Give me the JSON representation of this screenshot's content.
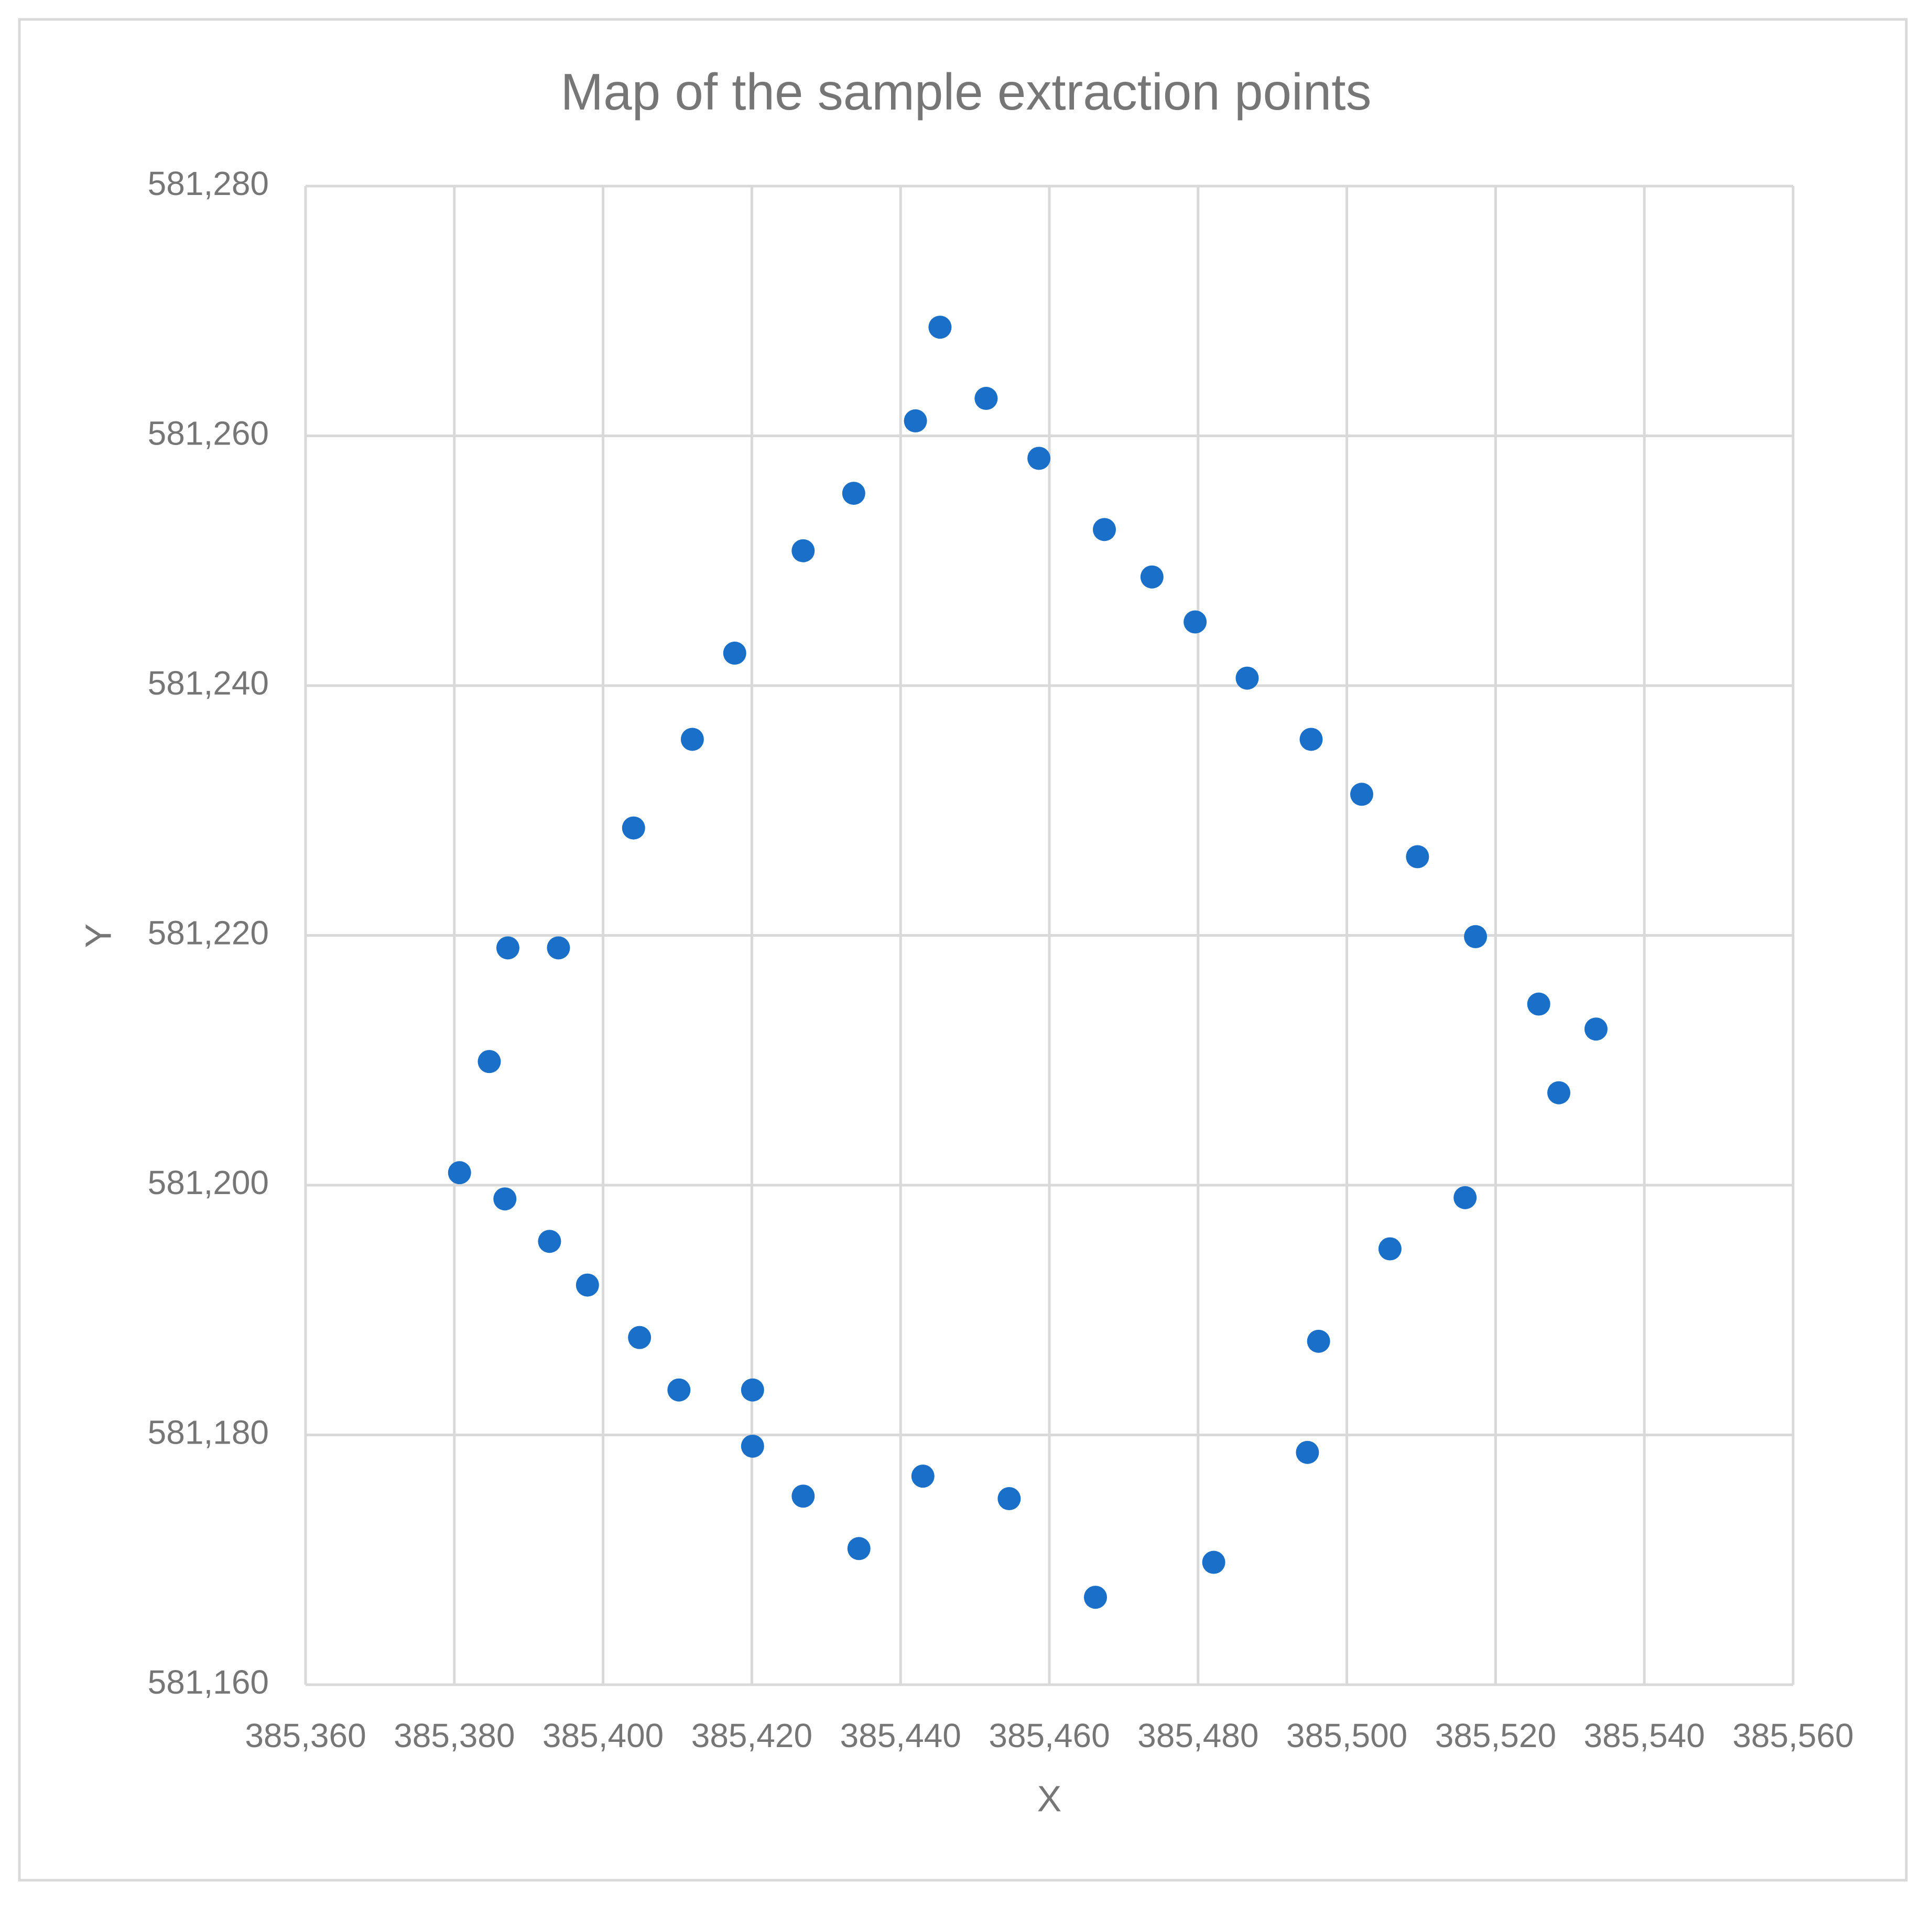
{
  "chart_data": {
    "type": "scatter",
    "title": "Map of the sample extraction points",
    "x_label": "X",
    "y_label": "Y",
    "color": "#1a6fc9",
    "grid": true,
    "xlim": [
      385360,
      385560
    ],
    "xticks": [
      {
        "value": 385360,
        "label": "385,360"
      },
      {
        "value": 385380,
        "label": "385,380"
      },
      {
        "value": 385400,
        "label": "385,400"
      },
      {
        "value": 385420,
        "label": "385,420"
      },
      {
        "value": 385440,
        "label": "385,440"
      },
      {
        "value": 385460,
        "label": "385,460"
      },
      {
        "value": 385480,
        "label": "385,480"
      },
      {
        "value": 385500,
        "label": "385,500"
      },
      {
        "value": 385520,
        "label": "385,520"
      },
      {
        "value": 385540,
        "label": "385,540"
      },
      {
        "value": 385560,
        "label": "385,560"
      }
    ],
    "ylim": [
      581160,
      581280
    ],
    "yticks": [
      {
        "value": 581160,
        "label": "581,160"
      },
      {
        "value": 581180,
        "label": "581,180"
      },
      {
        "value": 581200,
        "label": "581,200"
      },
      {
        "value": 581220,
        "label": "581,220"
      },
      {
        "value": 581240,
        "label": "581,240"
      },
      {
        "value": 581260,
        "label": "581,260"
      },
      {
        "value": 581280,
        "label": "581,280"
      }
    ],
    "x": [
      385445.3,
      385451.5,
      385442.0,
      385458.6,
      385433.7,
      385426.9,
      385467.4,
      385473.8,
      385479.6,
      385417.7,
      385486.6,
      385412.0,
      385495.2,
      385502.0,
      385404.1,
      385509.5,
      385387.2,
      385394.0,
      385517.3,
      385525.8,
      385533.5,
      385384.7,
      385528.5,
      385380.7,
      385386.8,
      385515.9,
      385392.8,
      385505.8,
      385397.9,
      385404.9,
      385496.2,
      385410.2,
      385420.1,
      385420.1,
      385494.7,
      385443.0,
      385426.9,
      385454.6,
      385434.4,
      385482.1,
      385466.2
    ],
    "values": [
      581268.7,
      581263.0,
      581261.2,
      581258.2,
      581255.4,
      581250.8,
      581252.5,
      581248.7,
      581245.1,
      581242.6,
      581240.6,
      581235.7,
      581235.7,
      581231.3,
      581228.6,
      581226.3,
      581219.0,
      581219.0,
      581219.9,
      581214.5,
      581212.5,
      581209.9,
      581207.4,
      581201.0,
      581198.9,
      581199.0,
      581195.5,
      581194.9,
      581192.0,
      581187.8,
      581187.5,
      581183.6,
      581183.6,
      581179.1,
      581178.6,
      581176.7,
      581175.1,
      581174.9,
      581170.9,
      581169.8,
      581167.0
    ]
  }
}
